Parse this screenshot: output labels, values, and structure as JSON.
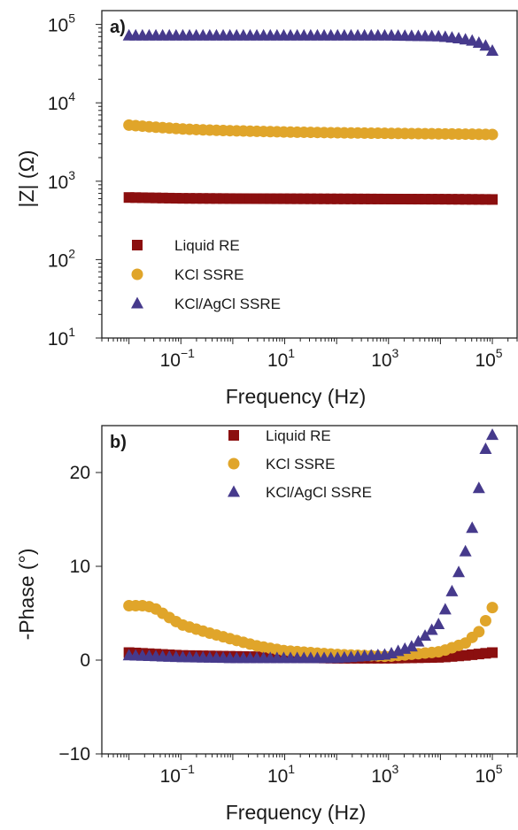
{
  "chart_data": [
    {
      "panel": "a)",
      "type": "scatter",
      "xlabel": "Frequency (Hz)",
      "ylabel": "|Z| (Ω)",
      "xscale": "log",
      "yscale": "log",
      "xlim": [
        0.003,
        300000
      ],
      "ylim": [
        10,
        150000
      ],
      "xticks": [
        {
          "base": "10",
          "exp": "−1",
          "value": 0.1
        },
        {
          "base": "10",
          "exp": "1",
          "value": 10
        },
        {
          "base": "10",
          "exp": "3",
          "value": 1000
        },
        {
          "base": "10",
          "exp": "5",
          "value": 100000
        }
      ],
      "yticks": [
        {
          "base": "10",
          "exp": "1",
          "value": 10
        },
        {
          "base": "10",
          "exp": "2",
          "value": 100
        },
        {
          "base": "10",
          "exp": "3",
          "value": 1000
        },
        {
          "base": "10",
          "exp": "4",
          "value": 10000
        },
        {
          "base": "10",
          "exp": "5",
          "value": 100000
        }
      ],
      "legend_position": "bottom-left",
      "series": [
        {
          "name": "Liquid RE",
          "marker": "square",
          "color": "#8b0f0f",
          "x": [
            0.01,
            0.1,
            1,
            10,
            100,
            1000,
            10000,
            100000
          ],
          "y": [
            620,
            605,
            600,
            598,
            595,
            592,
            590,
            585
          ]
        },
        {
          "name": "KCl SSRE",
          "marker": "circle",
          "color": "#e0a52a",
          "x": [
            0.01,
            0.03,
            0.1,
            0.3,
            1,
            10,
            100,
            1000,
            10000,
            100000
          ],
          "y": [
            5200,
            4900,
            4650,
            4500,
            4400,
            4250,
            4150,
            4080,
            4020,
            3950
          ]
        },
        {
          "name": "KCl/AgCl SSRE",
          "marker": "triangle",
          "color": "#463a8c",
          "x": [
            0.01,
            0.1,
            1,
            10,
            100,
            1000,
            10000,
            20000,
            40000,
            60000,
            80000,
            100000
          ],
          "y": [
            72000,
            72000,
            72000,
            72000,
            72000,
            72000,
            70000,
            67000,
            62000,
            57000,
            52000,
            46000
          ]
        }
      ]
    },
    {
      "panel": "b)",
      "type": "scatter",
      "xlabel": "Frequency (Hz)",
      "ylabel": "-Phase (°)",
      "xscale": "log",
      "yscale": "linear",
      "xlim": [
        0.003,
        300000
      ],
      "ylim": [
        -10,
        25
      ],
      "xticks": [
        {
          "base": "10",
          "exp": "−1",
          "value": 0.1
        },
        {
          "base": "10",
          "exp": "1",
          "value": 10
        },
        {
          "base": "10",
          "exp": "3",
          "value": 1000
        },
        {
          "base": "10",
          "exp": "5",
          "value": 100000
        }
      ],
      "yticks": [
        {
          "label": "−10",
          "value": -10
        },
        {
          "label": "0",
          "value": 0
        },
        {
          "label": "10",
          "value": 10
        },
        {
          "label": "20",
          "value": 20
        }
      ],
      "legend_position": "top-center",
      "series": [
        {
          "name": "Liquid RE",
          "marker": "square",
          "color": "#8b0f0f",
          "x": [
            0.01,
            0.1,
            1,
            10,
            100,
            1000,
            10000,
            30000,
            100000
          ],
          "y": [
            0.8,
            0.5,
            0.4,
            0.3,
            0.2,
            0.2,
            0.3,
            0.5,
            0.8
          ]
        },
        {
          "name": "KCl SSRE",
          "marker": "circle",
          "color": "#e0a52a",
          "x": [
            0.01,
            0.02,
            0.03,
            0.05,
            0.1,
            0.3,
            1,
            3,
            10,
            100,
            1000,
            10000,
            30000,
            60000,
            100000
          ],
          "y": [
            5.8,
            5.8,
            5.6,
            4.8,
            3.8,
            3.0,
            2.2,
            1.5,
            1.0,
            0.6,
            0.4,
            0.9,
            1.8,
            3.2,
            5.6
          ]
        },
        {
          "name": "KCl/AgCl SSRE",
          "marker": "triangle",
          "color": "#463a8c",
          "x": [
            0.01,
            0.1,
            1,
            10,
            100,
            1000,
            3000,
            10000,
            20000,
            30000,
            40000,
            50000,
            60000,
            80000,
            100000
          ],
          "y": [
            0.5,
            0.3,
            0.2,
            0.2,
            0.2,
            0.6,
            1.5,
            4.0,
            8.5,
            11.5,
            13.8,
            16.8,
            19.7,
            23.5,
            24.0
          ]
        }
      ]
    }
  ]
}
